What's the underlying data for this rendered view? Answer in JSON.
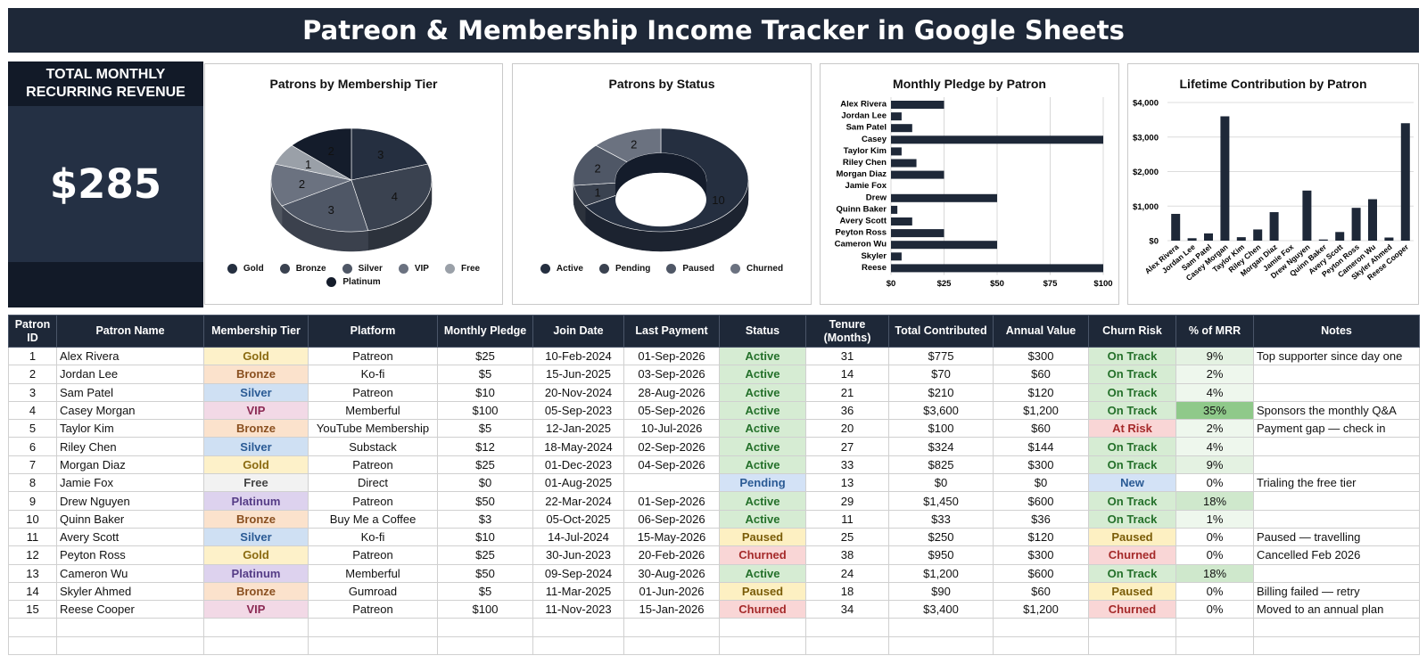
{
  "title": "Patreon & Membership Income Tracker in Google Sheets",
  "mrr": {
    "label": "TOTAL MONTHLY RECURRING REVENUE",
    "value": "$285"
  },
  "colors": {
    "header": "#1e2838",
    "slice_1": "#141c2b",
    "slice_2": "#252f40",
    "slice_3": "#3a4250",
    "slice_4": "#4f5766",
    "slice_5": "#6b7280",
    "slice_6": "#9aa0a8"
  },
  "chart_data": [
    {
      "type": "pie",
      "title": "Patrons by Membership Tier",
      "slices": [
        {
          "label": "Gold",
          "value": 3
        },
        {
          "label": "Bronze",
          "value": 4
        },
        {
          "label": "Silver",
          "value": 3
        },
        {
          "label": "VIP",
          "value": 2
        },
        {
          "label": "Free",
          "value": 1
        },
        {
          "label": "Platinum",
          "value": 2
        }
      ],
      "legend": [
        "Gold",
        "Bronze",
        "Silver",
        "VIP",
        "Free",
        "Platinum"
      ]
    },
    {
      "type": "pie",
      "title": "Patrons by Status",
      "donut": true,
      "slices": [
        {
          "label": "Active",
          "value": 10
        },
        {
          "label": "Pending",
          "value": 1
        },
        {
          "label": "Paused",
          "value": 2
        },
        {
          "label": "Churned",
          "value": 2
        }
      ],
      "legend": [
        "Active",
        "Pending",
        "Paused",
        "Churned"
      ]
    },
    {
      "type": "bar",
      "orientation": "horizontal",
      "title": "Monthly Pledge by Patron",
      "categories": [
        "Alex Rivera",
        "Jordan Lee",
        "Sam Patel",
        "Casey",
        "Taylor Kim",
        "Riley Chen",
        "Morgan Diaz",
        "Jamie Fox",
        "Drew",
        "Quinn Baker",
        "Avery Scott",
        "Peyton Ross",
        "Cameron Wu",
        "Skyler",
        "Reese"
      ],
      "values": [
        25,
        5,
        10,
        100,
        5,
        12,
        25,
        0,
        50,
        3,
        10,
        25,
        50,
        5,
        100
      ],
      "ticks": [
        "$0",
        "$25",
        "$50",
        "$75",
        "$100"
      ],
      "xlim": [
        0,
        100
      ]
    },
    {
      "type": "bar",
      "title": "Lifetime Contribution by Patron",
      "categories": [
        "Alex Rivera",
        "Jordan Lee",
        "Sam Patel",
        "Casey Morgan",
        "Taylor Kim",
        "Riley Chen",
        "Morgan Diaz",
        "Jamie Fox",
        "Drew Nguyen",
        "Quinn Baker",
        "Avery Scott",
        "Peyton Ross",
        "Cameron Wu",
        "Skyler Ahmed",
        "Reese Cooper"
      ],
      "values": [
        775,
        70,
        210,
        3600,
        100,
        324,
        825,
        0,
        1450,
        33,
        250,
        950,
        1200,
        90,
        3400
      ],
      "ticks": [
        "$0",
        "$1,000",
        "$2,000",
        "$3,000",
        "$4,000"
      ],
      "ylim": [
        0,
        4000
      ]
    }
  ],
  "table": {
    "headers": [
      "Patron ID",
      "Patron Name",
      "Membership Tier",
      "Platform",
      "Monthly Pledge",
      "Join Date",
      "Last Payment",
      "Status",
      "Tenure (Months)",
      "Total Contributed",
      "Annual Value",
      "Churn Risk",
      "% of MRR",
      "Notes"
    ],
    "rows": [
      [
        "1",
        "Alex Rivera",
        "Gold",
        "Patreon",
        "$25",
        "10-Feb-2024",
        "01-Sep-2026",
        "Active",
        "31",
        "$775",
        "$300",
        "On Track",
        "9%",
        "Top supporter since day one"
      ],
      [
        "2",
        "Jordan Lee",
        "Bronze",
        "Ko-fi",
        "$5",
        "15-Jun-2025",
        "03-Sep-2026",
        "Active",
        "14",
        "$70",
        "$60",
        "On Track",
        "2%",
        ""
      ],
      [
        "3",
        "Sam Patel",
        "Silver",
        "Patreon",
        "$10",
        "20-Nov-2024",
        "28-Aug-2026",
        "Active",
        "21",
        "$210",
        "$120",
        "On Track",
        "4%",
        ""
      ],
      [
        "4",
        "Casey Morgan",
        "VIP",
        "Memberful",
        "$100",
        "05-Sep-2023",
        "05-Sep-2026",
        "Active",
        "36",
        "$3,600",
        "$1,200",
        "On Track",
        "35%",
        "Sponsors the monthly Q&A"
      ],
      [
        "5",
        "Taylor Kim",
        "Bronze",
        "YouTube Membership",
        "$5",
        "12-Jan-2025",
        "10-Jul-2026",
        "Active",
        "20",
        "$100",
        "$60",
        "At Risk",
        "2%",
        "Payment gap — check in"
      ],
      [
        "6",
        "Riley Chen",
        "Silver",
        "Substack",
        "$12",
        "18-May-2024",
        "02-Sep-2026",
        "Active",
        "27",
        "$324",
        "$144",
        "On Track",
        "4%",
        ""
      ],
      [
        "7",
        "Morgan Diaz",
        "Gold",
        "Patreon",
        "$25",
        "01-Dec-2023",
        "04-Sep-2026",
        "Active",
        "33",
        "$825",
        "$300",
        "On Track",
        "9%",
        ""
      ],
      [
        "8",
        "Jamie Fox",
        "Free",
        "Direct",
        "$0",
        "01-Aug-2025",
        "",
        "Pending",
        "13",
        "$0",
        "$0",
        "New",
        "0%",
        "Trialing the free tier"
      ],
      [
        "9",
        "Drew Nguyen",
        "Platinum",
        "Patreon",
        "$50",
        "22-Mar-2024",
        "01-Sep-2026",
        "Active",
        "29",
        "$1,450",
        "$600",
        "On Track",
        "18%",
        ""
      ],
      [
        "10",
        "Quinn Baker",
        "Bronze",
        "Buy Me a Coffee",
        "$3",
        "05-Oct-2025",
        "06-Sep-2026",
        "Active",
        "11",
        "$33",
        "$36",
        "On Track",
        "1%",
        ""
      ],
      [
        "11",
        "Avery Scott",
        "Silver",
        "Ko-fi",
        "$10",
        "14-Jul-2024",
        "15-May-2026",
        "Paused",
        "25",
        "$250",
        "$120",
        "Paused",
        "0%",
        "Paused — travelling"
      ],
      [
        "12",
        "Peyton Ross",
        "Gold",
        "Patreon",
        "$25",
        "30-Jun-2023",
        "20-Feb-2026",
        "Churned",
        "38",
        "$950",
        "$300",
        "Churned",
        "0%",
        "Cancelled Feb 2026"
      ],
      [
        "13",
        "Cameron Wu",
        "Platinum",
        "Memberful",
        "$50",
        "09-Sep-2024",
        "30-Aug-2026",
        "Active",
        "24",
        "$1,200",
        "$600",
        "On Track",
        "18%",
        ""
      ],
      [
        "14",
        "Skyler Ahmed",
        "Bronze",
        "Gumroad",
        "$5",
        "11-Mar-2025",
        "01-Jun-2026",
        "Paused",
        "18",
        "$90",
        "$60",
        "Paused",
        "0%",
        "Billing failed — retry"
      ],
      [
        "15",
        "Reese Cooper",
        "VIP",
        "Patreon",
        "$100",
        "11-Nov-2023",
        "15-Jan-2026",
        "Churned",
        "34",
        "$3,400",
        "$1,200",
        "Churned",
        "0%",
        "Moved to an annual plan"
      ]
    ]
  }
}
